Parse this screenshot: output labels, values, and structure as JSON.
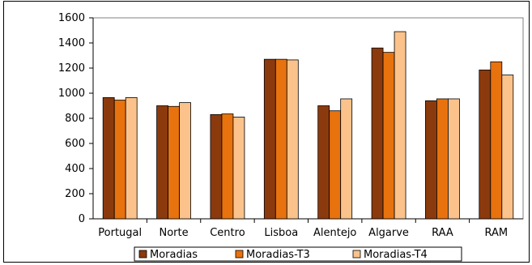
{
  "chart_data": {
    "type": "bar",
    "title": "",
    "xlabel": "",
    "ylabel": "",
    "ylim": [
      0,
      1600
    ],
    "yticks": [
      0,
      200,
      400,
      600,
      800,
      1000,
      1200,
      1400,
      1600
    ],
    "grid": false,
    "legend_position": "bottom",
    "categories": [
      "Portugal",
      "Norte",
      "Centro",
      "Lisboa",
      "Alentejo",
      "Algarve",
      "RAA",
      "RAM"
    ],
    "series": [
      {
        "name": "Moradias",
        "color": "#8B3A0E",
        "values": [
          965,
          900,
          830,
          1270,
          900,
          1360,
          940,
          1185
        ]
      },
      {
        "name": "Moradias-T3",
        "color": "#E8720E",
        "values": [
          945,
          895,
          835,
          1270,
          860,
          1325,
          955,
          1250
        ]
      },
      {
        "name": "Moradias-T4",
        "color": "#FBC38B",
        "values": [
          965,
          925,
          810,
          1265,
          955,
          1490,
          955,
          1145
        ]
      }
    ]
  }
}
